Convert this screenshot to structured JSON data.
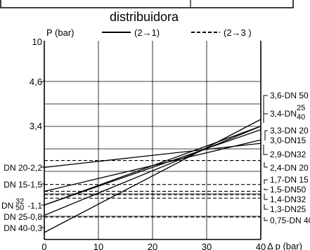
{
  "chart_data": {
    "type": "line",
    "title": "distribuidora",
    "ylabel": "P (bar)",
    "xlabel": "Δ p (bar)",
    "legend": {
      "placement": "top",
      "items": [
        {
          "label": "(2→1)",
          "style": "solid"
        },
        {
          "label": "(2→3 )",
          "style": "dashed"
        }
      ]
    },
    "x_ticks": [
      "0",
      "10",
      "20",
      "30",
      "40"
    ],
    "y_tick_labels": [
      "10",
      "4,6",
      "3,4"
    ],
    "xlim": [
      0,
      40
    ],
    "y_scale": "nonlinear",
    "grid": true,
    "series": [
      {
        "style": "solid",
        "left_label": "DN 20-2,2",
        "right_label": "2,9-DN32",
        "x": [
          0,
          40
        ],
        "y": [
          2.2,
          2.9
        ]
      },
      {
        "style": "solid",
        "left_label": "DN 15-1,5",
        "right_label": "3,0-DN15",
        "x": [
          0,
          40
        ],
        "y": [
          1.5,
          3.0
        ]
      },
      {
        "style": "solid",
        "left_label": "32",
        "right_label": "3,3-DN 20",
        "x": [
          0,
          40
        ],
        "y": [
          1.1,
          3.3
        ]
      },
      {
        "style": "solid",
        "left_label": "50",
        "right_label": "3,4-DN",
        "x": [
          0,
          40
        ],
        "y": [
          1.1,
          3.4
        ]
      },
      {
        "style": "solid",
        "left_label": "DN 25-0,8",
        "right_label": "3,4-DN",
        "x": [
          0,
          40
        ],
        "y": [
          0.8,
          3.4
        ]
      },
      {
        "style": "solid",
        "left_label": "DN 40-0,3",
        "right_label": "3,6-DN 50",
        "x": [
          0,
          40
        ],
        "y": [
          0.3,
          3.6
        ]
      },
      {
        "style": "dashed",
        "right_label": "2,4-DN 20",
        "x": [
          0,
          40
        ],
        "y": [
          2.4,
          2.4
        ]
      },
      {
        "style": "dashed",
        "right_label": "1,7-DN 15",
        "x": [
          0,
          40
        ],
        "y": [
          1.7,
          1.7
        ]
      },
      {
        "style": "dashed",
        "right_label": "1,5-DN50",
        "x": [
          0,
          40
        ],
        "y": [
          1.5,
          1.5
        ]
      },
      {
        "style": "dashed",
        "right_label": "1,4-DN32",
        "x": [
          0,
          40
        ],
        "y": [
          1.4,
          1.4
        ]
      },
      {
        "style": "dashed",
        "right_label": "1,3-DN25",
        "x": [
          0,
          40
        ],
        "y": [
          1.3,
          1.3
        ]
      },
      {
        "style": "dashed",
        "right_label": "0,75-DN 40",
        "x": [
          0,
          40
        ],
        "y": [
          0.75,
          0.75
        ]
      }
    ],
    "left_prefix": "DN",
    "left_suffix": "-1,1",
    "right_bracket_labels": [
      "25",
      "40"
    ]
  }
}
